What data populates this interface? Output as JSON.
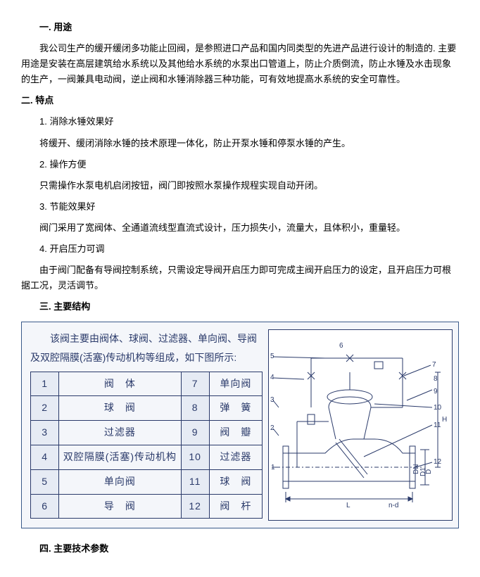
{
  "sections": {
    "s1_title": "一. 用途",
    "s1_p1": "我公司生产的缓开缓闭多功能止回阀，是参照进口产品和国内同类型的先进产品进行设计的制造的. 主要用途是安装在高层建筑给水系统以及其他给水系统的水泵出口管道上，防止介质倒流，防止水锤及水击现象的生产，一阀兼具电动阀，逆止阀和水锤消除器三种功能，可有效地提高水系统的安全可靠性。",
    "s2_title": "二. 特点",
    "s2_i1": "1. 消除水锤效果好",
    "s2_p1": "将缓开、缓闭消除水锤的技术原理一体化，防止开泵水锤和停泵水锤的产生。",
    "s2_i2": "2. 操作方便",
    "s2_p2": "只需操作水泵电机启闭按钮，阀门即按照水泵操作规程实现自动开闭。",
    "s2_i3": "3. 节能效果好",
    "s2_p3": "阀门采用了宽阀体、全通道流线型直流式设计，压力损失小，流量大，且体积小，重量轻。",
    "s2_i4": "4. 开启压力可调",
    "s2_p4": "由于阀门配备有导阀控制系统，只需设定导阀开启压力即可完成主阀开启压力的设定，且开启压力可根据工况，灵活调节。",
    "s3_title": "三. 主要结构",
    "s3_desc": "该阀主要由阀体、球阀、过滤器、单向阀、导阀及双腔隔膜(活塞)传动机构等组成，如下图所示:",
    "s4_title": "四. 主要技术参数"
  },
  "parts": [
    {
      "n": "1",
      "name": "阀　体",
      "n2": "7",
      "name2": "单向阀"
    },
    {
      "n": "2",
      "name": "球　阀",
      "n2": "8",
      "name2": "弹　簧"
    },
    {
      "n": "3",
      "name": "过滤器",
      "n2": "9",
      "name2": "阀　瓣"
    },
    {
      "n": "4",
      "name": "双腔隔膜(活塞)传动机构",
      "n2": "10",
      "name2": "过滤器"
    },
    {
      "n": "5",
      "name": "单向阀",
      "n2": "11",
      "name2": "球　阀"
    },
    {
      "n": "6",
      "name": "导　阀",
      "n2": "12",
      "name2": "阀　杆"
    }
  ],
  "diagram": {
    "stroke": "#2a3a6a",
    "labels": [
      "1",
      "2",
      "3",
      "4",
      "5",
      "6",
      "7",
      "8",
      "9",
      "10",
      "11",
      "12"
    ],
    "dims": [
      "L",
      "H",
      "DN",
      "D1",
      "D",
      "n-d"
    ]
  },
  "colors": {
    "box_border": "#3a5a8a",
    "box_bg": "#f4f6fa",
    "text_blue": "#2a3a6a",
    "table_alt": "#e6ebf4",
    "body_text": "#000000",
    "page_bg": "#ffffff"
  }
}
